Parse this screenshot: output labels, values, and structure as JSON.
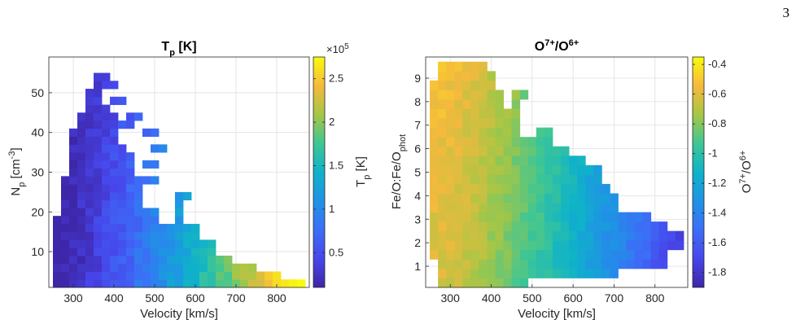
{
  "page": {
    "number": "3"
  },
  "chart_data": [
    {
      "type": "heatmap",
      "title": "T",
      "title_sub": "p",
      "title_tail": " [K]",
      "xlabel": "Velocity [km/s]",
      "ylabel": "N",
      "ylabel_sub": "p",
      "ylabel_tail": " [cm",
      "ylabel_sup": "-3",
      "ylabel_end": "]",
      "xlim": [
        240,
        880
      ],
      "ylim": [
        1,
        59
      ],
      "xticks": [
        300,
        400,
        500,
        600,
        700,
        800
      ],
      "yticks": [
        10,
        20,
        30,
        40,
        50
      ],
      "grid": true,
      "bin_x": 20,
      "bin_y": 2,
      "colorbar": {
        "label": "T",
        "label_sub": "p",
        "label_tail": " [K]",
        "multiplier": "×10",
        "multiplier_sup": "5",
        "range": [
          0.1,
          2.75
        ],
        "ticks": [
          0.5,
          1,
          1.5,
          2,
          2.5
        ],
        "tick_labels": [
          "0.5",
          "1",
          "1.5",
          "2",
          "2.5"
        ]
      }
    },
    {
      "type": "heatmap",
      "title": "O",
      "title_sup": "7+",
      "title_mid": "/O",
      "title_sup2": "6+",
      "xlabel": "Velocity [km/s]",
      "ylabel": "Fe/O:Fe/O",
      "ylabel_sub": "phot",
      "xlim": [
        240,
        880
      ],
      "ylim": [
        0.1,
        9.9
      ],
      "xticks": [
        300,
        400,
        500,
        600,
        700,
        800
      ],
      "yticks": [
        1,
        2,
        3,
        4,
        5,
        6,
        7,
        8,
        9
      ],
      "grid": true,
      "bin_x": 20,
      "bin_y": 0.4,
      "colorbar": {
        "label": "O",
        "label_sup": "7+",
        "label_mid": "/O",
        "label_sup2": "6+",
        "range": [
          -1.9,
          -0.35
        ],
        "ticks": [
          -1.8,
          -1.6,
          -1.4,
          -1.2,
          -1,
          -0.8,
          -0.6,
          -0.4
        ],
        "tick_labels": [
          "-1.8",
          "-1.6",
          "-1.4",
          "-1.2",
          "-1",
          "-0.8",
          "-0.6",
          "-0.4"
        ]
      }
    }
  ]
}
